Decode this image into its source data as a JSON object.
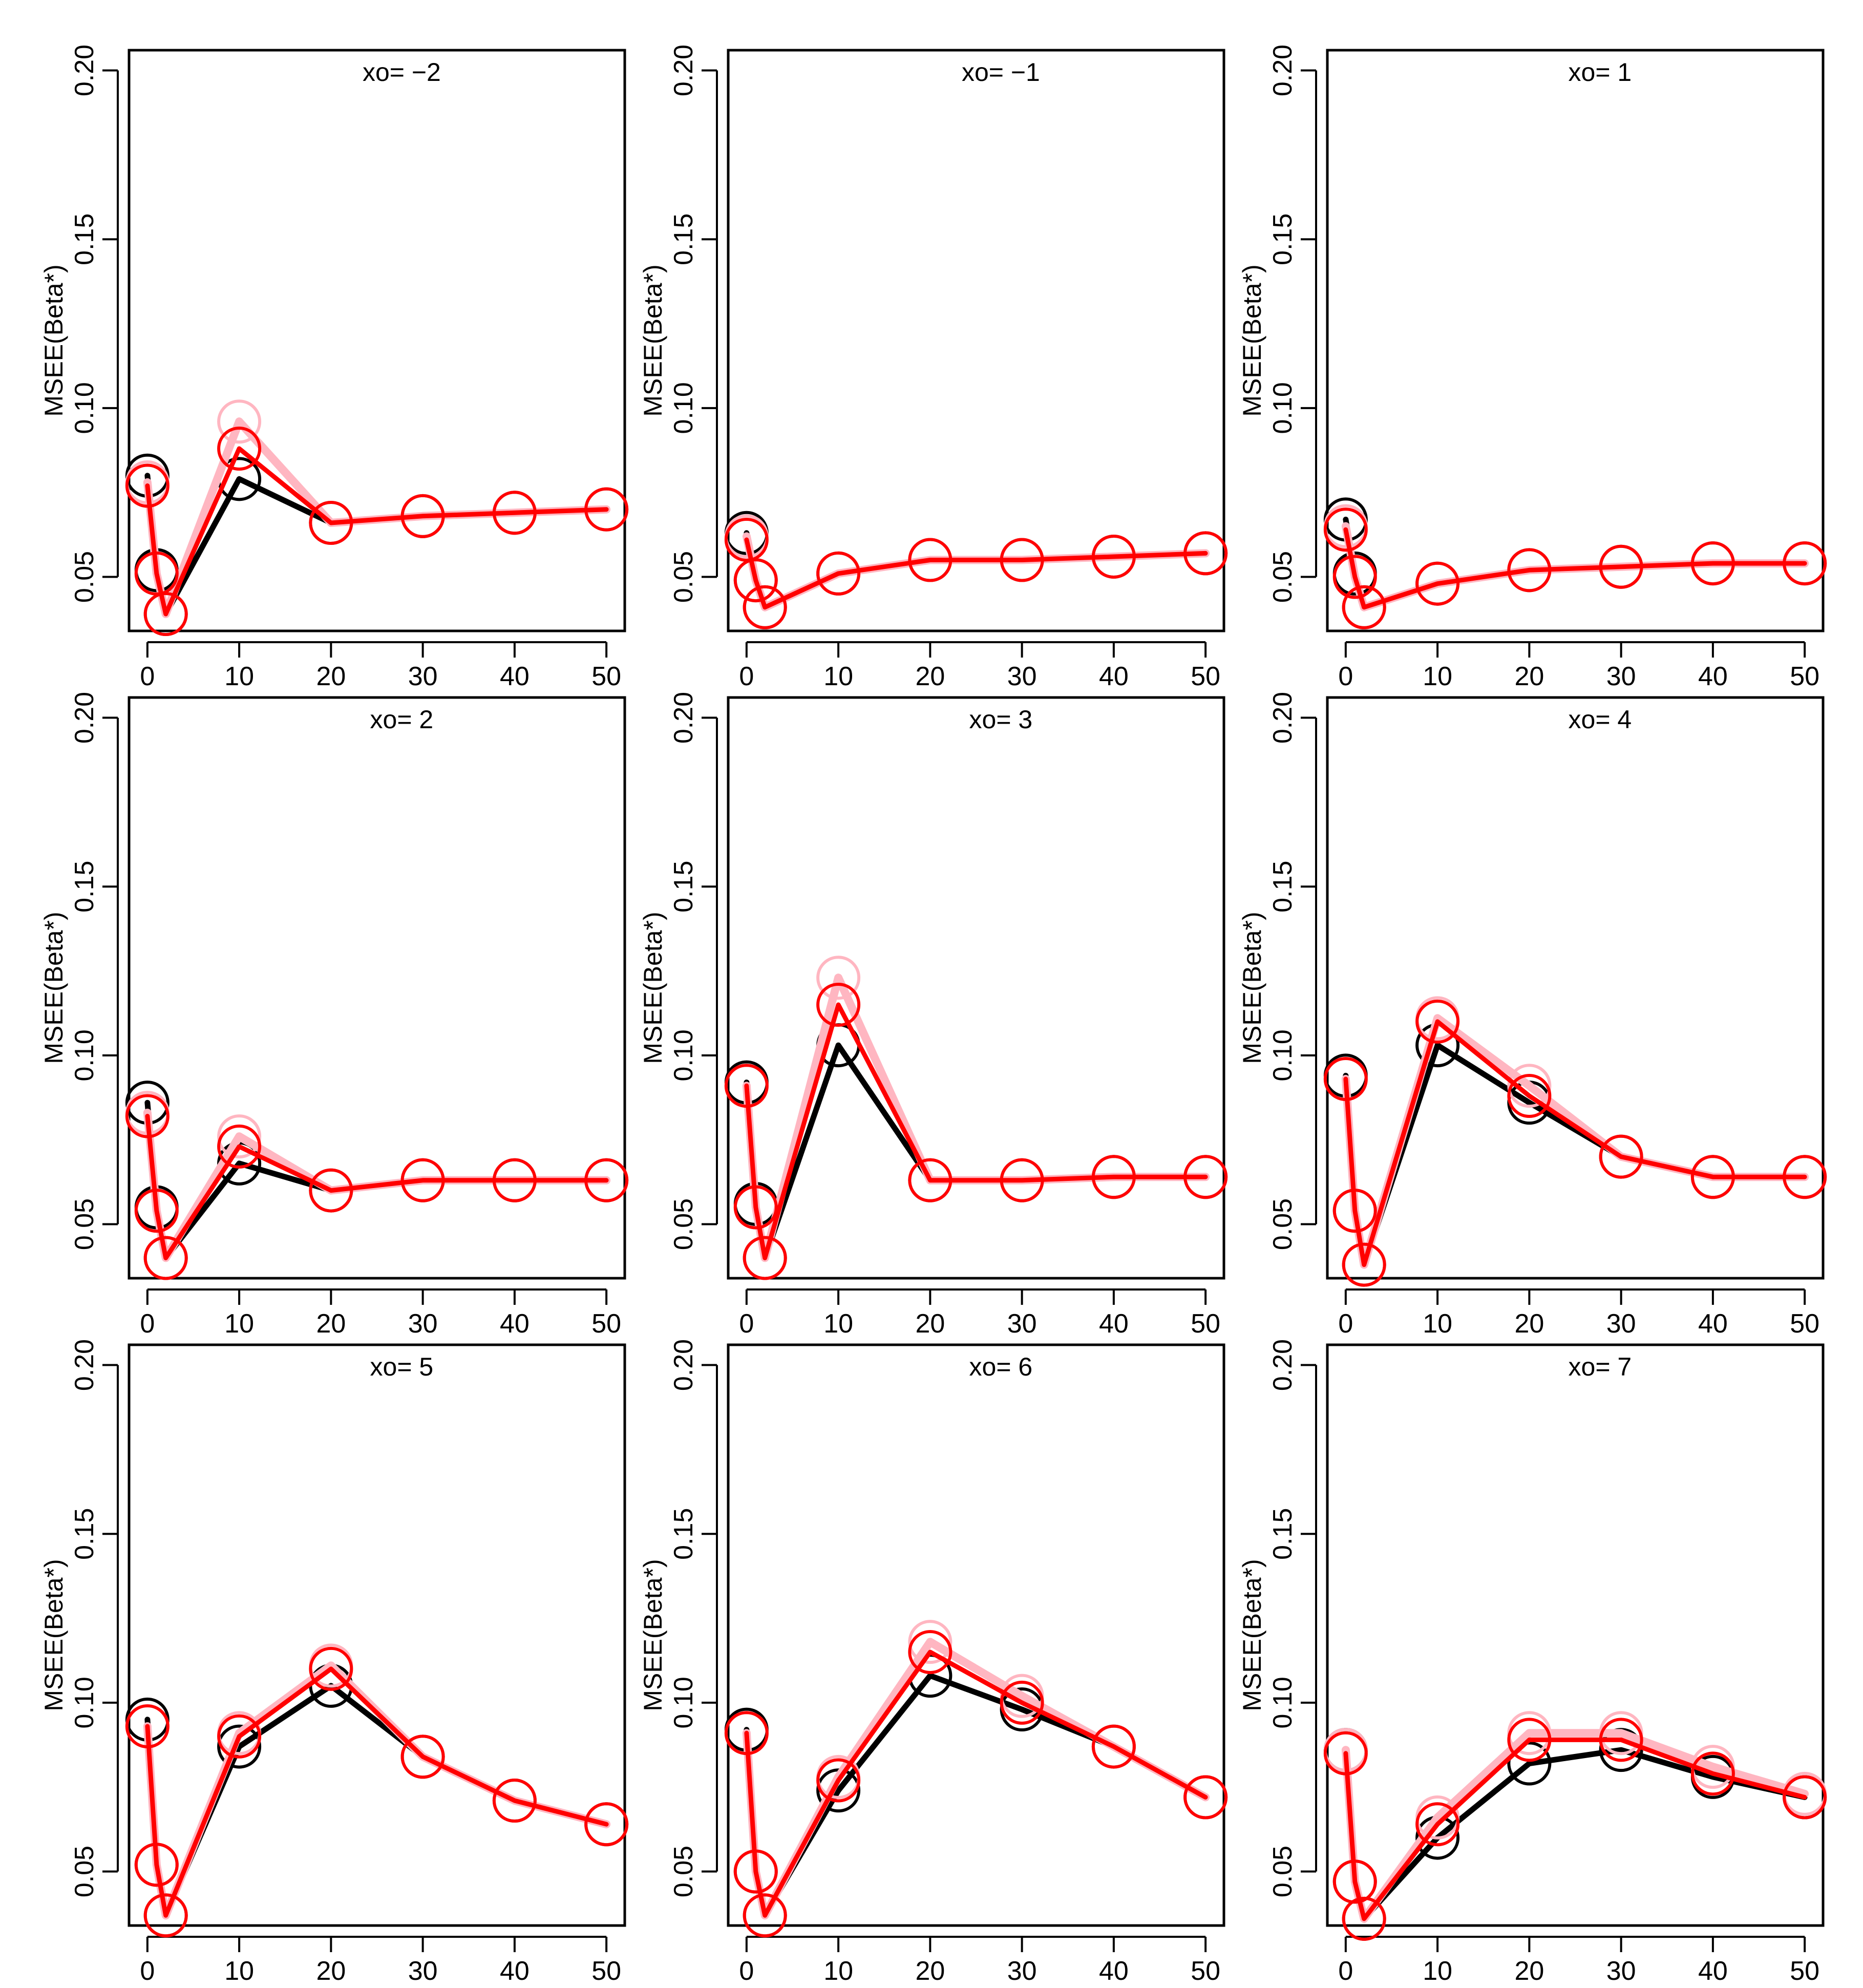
{
  "figure": {
    "grid": {
      "rows": 3,
      "cols": 3
    },
    "colors": {
      "black": "#000000",
      "red": "#ff0000",
      "pink": "#ffb6c1"
    }
  },
  "chart_data": [
    {
      "type": "line",
      "panel_label": "xo= −2",
      "ylabel": "MSEE(Beta*)",
      "xlabel": "",
      "x": [
        0,
        1,
        2,
        10,
        20,
        30,
        40,
        50
      ],
      "xlim": [
        -2,
        52
      ],
      "ylim": [
        0.034,
        0.206
      ],
      "xticks": [
        "0",
        "10",
        "20",
        "30",
        "40",
        "50"
      ],
      "yticks": [
        "0.05",
        "0.10",
        "0.15",
        "0.20"
      ],
      "series": [
        {
          "name": "black",
          "color": "#000000",
          "values": [
            0.08,
            0.052,
            0.039,
            0.079,
            0.066,
            0.068,
            0.069,
            0.07
          ]
        },
        {
          "name": "pink",
          "color": "#ffb6c1",
          "values": [
            0.078,
            0.051,
            0.039,
            0.096,
            0.066,
            0.068,
            0.069,
            0.07
          ]
        },
        {
          "name": "red",
          "color": "#ff0000",
          "values": [
            0.077,
            0.051,
            0.039,
            0.088,
            0.066,
            0.068,
            0.069,
            0.07
          ]
        }
      ]
    },
    {
      "type": "line",
      "panel_label": "xo= −1",
      "ylabel": "MSEE(Beta*)",
      "xlabel": "",
      "x": [
        0,
        1,
        2,
        10,
        20,
        30,
        40,
        50
      ],
      "xlim": [
        -2,
        52
      ],
      "ylim": [
        0.034,
        0.206
      ],
      "xticks": [
        "0",
        "10",
        "20",
        "30",
        "40",
        "50"
      ],
      "yticks": [
        "0.05",
        "0.10",
        "0.15",
        "0.20"
      ],
      "series": [
        {
          "name": "black",
          "color": "#000000",
          "values": [
            0.063,
            0.049,
            0.041,
            0.051,
            0.055,
            0.055,
            0.056,
            0.057
          ]
        },
        {
          "name": "pink",
          "color": "#ffb6c1",
          "values": [
            0.062,
            0.049,
            0.041,
            0.051,
            0.055,
            0.055,
            0.056,
            0.057
          ]
        },
        {
          "name": "red",
          "color": "#ff0000",
          "values": [
            0.061,
            0.049,
            0.041,
            0.051,
            0.055,
            0.055,
            0.056,
            0.057
          ]
        }
      ]
    },
    {
      "type": "line",
      "panel_label": "xo= 1",
      "ylabel": "MSEE(Beta*)",
      "xlabel": "",
      "x": [
        0,
        1,
        2,
        10,
        20,
        30,
        40,
        50
      ],
      "xlim": [
        -2,
        52
      ],
      "ylim": [
        0.034,
        0.206
      ],
      "xticks": [
        "0",
        "10",
        "20",
        "30",
        "40",
        "50"
      ],
      "yticks": [
        "0.05",
        "0.10",
        "0.15",
        "0.20"
      ],
      "series": [
        {
          "name": "black",
          "color": "#000000",
          "values": [
            0.067,
            0.051,
            0.041,
            0.048,
            0.052,
            0.053,
            0.054,
            0.054
          ]
        },
        {
          "name": "pink",
          "color": "#ffb6c1",
          "values": [
            0.065,
            0.05,
            0.041,
            0.048,
            0.052,
            0.053,
            0.054,
            0.054
          ]
        },
        {
          "name": "red",
          "color": "#ff0000",
          "values": [
            0.064,
            0.05,
            0.041,
            0.048,
            0.052,
            0.053,
            0.054,
            0.054
          ]
        }
      ]
    },
    {
      "type": "line",
      "panel_label": "xo= 2",
      "ylabel": "MSEE(Beta*)",
      "xlabel": "",
      "x": [
        0,
        1,
        2,
        10,
        20,
        30,
        40,
        50
      ],
      "xlim": [
        -2,
        52
      ],
      "ylim": [
        0.034,
        0.206
      ],
      "xticks": [
        "0",
        "10",
        "20",
        "30",
        "40",
        "50"
      ],
      "yticks": [
        "0.05",
        "0.10",
        "0.15",
        "0.20"
      ],
      "series": [
        {
          "name": "black",
          "color": "#000000",
          "values": [
            0.086,
            0.055,
            0.04,
            0.068,
            0.06,
            0.063,
            0.063,
            0.063
          ]
        },
        {
          "name": "pink",
          "color": "#ffb6c1",
          "values": [
            0.083,
            0.054,
            0.04,
            0.076,
            0.06,
            0.063,
            0.063,
            0.063
          ]
        },
        {
          "name": "red",
          "color": "#ff0000",
          "values": [
            0.082,
            0.054,
            0.04,
            0.073,
            0.06,
            0.063,
            0.063,
            0.063
          ]
        }
      ]
    },
    {
      "type": "line",
      "panel_label": "xo= 3",
      "ylabel": "MSEE(Beta*)",
      "xlabel": "",
      "x": [
        0,
        1,
        2,
        10,
        20,
        30,
        40,
        50
      ],
      "xlim": [
        -2,
        52
      ],
      "ylim": [
        0.034,
        0.206
      ],
      "xticks": [
        "0",
        "10",
        "20",
        "30",
        "40",
        "50"
      ],
      "yticks": [
        "0.05",
        "0.10",
        "0.15",
        "0.20"
      ],
      "series": [
        {
          "name": "black",
          "color": "#000000",
          "values": [
            0.092,
            0.056,
            0.04,
            0.103,
            0.063,
            0.063,
            0.064,
            0.064
          ]
        },
        {
          "name": "pink",
          "color": "#ffb6c1",
          "values": [
            0.091,
            0.055,
            0.04,
            0.123,
            0.063,
            0.063,
            0.064,
            0.064
          ]
        },
        {
          "name": "red",
          "color": "#ff0000",
          "values": [
            0.091,
            0.055,
            0.04,
            0.115,
            0.063,
            0.063,
            0.064,
            0.064
          ]
        }
      ]
    },
    {
      "type": "line",
      "panel_label": "xo= 4",
      "ylabel": "MSEE(Beta*)",
      "xlabel": "",
      "x": [
        0,
        1,
        2,
        10,
        20,
        30,
        40,
        50
      ],
      "xlim": [
        -2,
        52
      ],
      "ylim": [
        0.034,
        0.206
      ],
      "xticks": [
        "0",
        "10",
        "20",
        "30",
        "40",
        "50"
      ],
      "yticks": [
        "0.05",
        "0.10",
        "0.15",
        "0.20"
      ],
      "series": [
        {
          "name": "black",
          "color": "#000000",
          "values": [
            0.094,
            0.054,
            0.038,
            0.103,
            0.086,
            0.07,
            0.064,
            0.064
          ]
        },
        {
          "name": "pink",
          "color": "#ffb6c1",
          "values": [
            0.093,
            0.054,
            0.038,
            0.111,
            0.091,
            0.07,
            0.064,
            0.064
          ]
        },
        {
          "name": "red",
          "color": "#ff0000",
          "values": [
            0.093,
            0.054,
            0.038,
            0.11,
            0.088,
            0.07,
            0.064,
            0.064
          ]
        }
      ]
    },
    {
      "type": "line",
      "panel_label": "xo= 5",
      "ylabel": "MSEE(Beta*)",
      "xlabel": "",
      "x": [
        0,
        1,
        2,
        10,
        20,
        30,
        40,
        50
      ],
      "xlim": [
        -2,
        52
      ],
      "ylim": [
        0.034,
        0.206
      ],
      "xticks": [
        "0",
        "10",
        "20",
        "30",
        "40",
        "50"
      ],
      "yticks": [
        "0.05",
        "0.10",
        "0.15",
        "0.20"
      ],
      "series": [
        {
          "name": "black",
          "color": "#000000",
          "values": [
            0.095,
            0.052,
            0.037,
            0.087,
            0.105,
            0.084,
            0.071,
            0.064
          ]
        },
        {
          "name": "pink",
          "color": "#ffb6c1",
          "values": [
            0.093,
            0.052,
            0.037,
            0.091,
            0.111,
            0.084,
            0.071,
            0.064
          ]
        },
        {
          "name": "red",
          "color": "#ff0000",
          "values": [
            0.093,
            0.052,
            0.037,
            0.09,
            0.11,
            0.084,
            0.071,
            0.064
          ]
        }
      ]
    },
    {
      "type": "line",
      "panel_label": "xo= 6",
      "ylabel": "MSEE(Beta*)",
      "xlabel": "",
      "x": [
        0,
        1,
        2,
        10,
        20,
        30,
        40,
        50
      ],
      "xlim": [
        -2,
        52
      ],
      "ylim": [
        0.034,
        0.206
      ],
      "xticks": [
        "0",
        "10",
        "20",
        "30",
        "40",
        "50"
      ],
      "yticks": [
        "0.05",
        "0.10",
        "0.15",
        "0.20"
      ],
      "series": [
        {
          "name": "black",
          "color": "#000000",
          "values": [
            0.092,
            0.05,
            0.037,
            0.074,
            0.108,
            0.098,
            0.087,
            0.072
          ]
        },
        {
          "name": "pink",
          "color": "#ffb6c1",
          "values": [
            0.091,
            0.05,
            0.037,
            0.078,
            0.118,
            0.102,
            0.087,
            0.072
          ]
        },
        {
          "name": "red",
          "color": "#ff0000",
          "values": [
            0.091,
            0.05,
            0.037,
            0.077,
            0.115,
            0.1,
            0.087,
            0.072
          ]
        }
      ]
    },
    {
      "type": "line",
      "panel_label": "xo= 7",
      "ylabel": "MSEE(Beta*)",
      "xlabel": "",
      "x": [
        0,
        1,
        2,
        10,
        20,
        30,
        40,
        50
      ],
      "xlim": [
        -2,
        52
      ],
      "ylim": [
        0.034,
        0.206
      ],
      "xticks": [
        "0",
        "10",
        "20",
        "30",
        "40",
        "50"
      ],
      "yticks": [
        "0.05",
        "0.10",
        "0.15",
        "0.20"
      ],
      "series": [
        {
          "name": "black",
          "color": "#000000",
          "values": [
            0.086,
            0.047,
            0.036,
            0.06,
            0.082,
            0.086,
            0.078,
            0.072
          ]
        },
        {
          "name": "pink",
          "color": "#ffb6c1",
          "values": [
            0.086,
            0.047,
            0.036,
            0.066,
            0.091,
            0.091,
            0.081,
            0.073
          ]
        },
        {
          "name": "red",
          "color": "#ff0000",
          "values": [
            0.085,
            0.047,
            0.036,
            0.064,
            0.089,
            0.089,
            0.079,
            0.072
          ]
        }
      ]
    }
  ]
}
